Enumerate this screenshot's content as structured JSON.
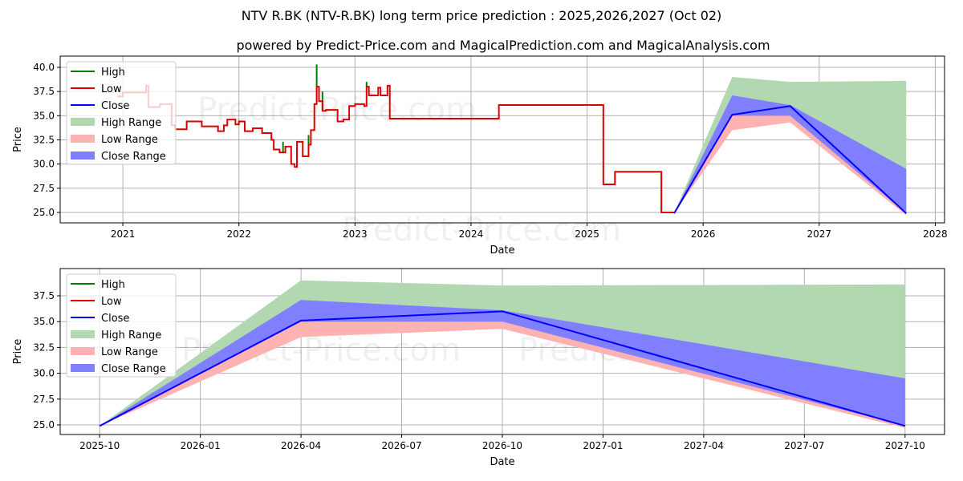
{
  "title": "NTV R.BK (NTV-R.BK) long term price prediction : 2025,2026,2027 (Oct 02)",
  "subtitle": "powered by Predict-Price.com and MagicalPrediction.com and MagicalAnalysis.com",
  "watermark": "Predict-Price.com",
  "colors": {
    "high": "#008000",
    "low": "#dd0000",
    "close": "#0000ff",
    "high_range": "#b2d8b2",
    "low_range": "#ffb2b2",
    "close_range": "#7f7fff"
  },
  "chart_data": [
    {
      "type": "line",
      "xlabel": "Date",
      "ylabel": "Price",
      "xlim": [
        2020.46,
        2028.08
      ],
      "ylim": [
        23.92,
        41.16
      ],
      "xticks": [
        2021,
        2022,
        2023,
        2024,
        2025,
        2026,
        2027,
        2028
      ],
      "xtick_labels": [
        "2021",
        "2022",
        "2023",
        "2024",
        "2025",
        "2026",
        "2027",
        "2028"
      ],
      "yticks": [
        25,
        27.5,
        30,
        32.5,
        35,
        37.5,
        40
      ],
      "ytick_labels": [
        "25.0",
        "27.5",
        "30.0",
        "32.5",
        "35.0",
        "37.5",
        "40.0"
      ],
      "grid": true,
      "legend": {
        "placement": "top-left",
        "entries": [
          "High",
          "Low",
          "Close",
          "High Range",
          "Low Range",
          "Close Range"
        ]
      },
      "low_history": [
        [
          2020.95,
          37.0
        ],
        [
          2021.0,
          37.4
        ],
        [
          2021.2,
          38.1
        ],
        [
          2021.22,
          35.9
        ],
        [
          2021.32,
          36.2
        ],
        [
          2021.42,
          34.0
        ],
        [
          2021.45,
          33.6
        ],
        [
          2021.55,
          34.4
        ],
        [
          2021.68,
          33.9
        ],
        [
          2021.82,
          33.4
        ],
        [
          2021.87,
          34.0
        ],
        [
          2021.9,
          34.6
        ],
        [
          2021.97,
          34.1
        ],
        [
          2022.0,
          34.4
        ],
        [
          2022.05,
          33.4
        ],
        [
          2022.12,
          33.7
        ],
        [
          2022.2,
          33.2
        ],
        [
          2022.28,
          32.5
        ],
        [
          2022.3,
          31.5
        ],
        [
          2022.35,
          31.2
        ],
        [
          2022.4,
          31.8
        ],
        [
          2022.45,
          30.0
        ],
        [
          2022.48,
          29.7
        ],
        [
          2022.5,
          32.3
        ],
        [
          2022.55,
          30.8
        ],
        [
          2022.6,
          32.0
        ],
        [
          2022.62,
          33.5
        ],
        [
          2022.65,
          36.2
        ],
        [
          2022.67,
          38.0
        ],
        [
          2022.69,
          36.5
        ],
        [
          2022.72,
          35.5
        ],
        [
          2022.75,
          35.6
        ],
        [
          2022.85,
          34.4
        ],
        [
          2022.9,
          34.6
        ],
        [
          2022.95,
          36.0
        ],
        [
          2023.0,
          36.2
        ],
        [
          2023.08,
          36.0
        ],
        [
          2023.1,
          38.0
        ],
        [
          2023.12,
          37.1
        ],
        [
          2023.2,
          37.9
        ],
        [
          2023.22,
          37.1
        ],
        [
          2023.28,
          38.1
        ],
        [
          2023.3,
          34.7
        ],
        [
          2024.22,
          34.7
        ],
        [
          2024.24,
          36.1
        ],
        [
          2025.12,
          36.1
        ],
        [
          2025.14,
          27.9
        ],
        [
          2025.22,
          27.9
        ],
        [
          2025.24,
          29.2
        ],
        [
          2025.62,
          29.2
        ],
        [
          2025.64,
          25.0
        ],
        [
          2025.75,
          24.9
        ]
      ],
      "high_spikes": [
        [
          2022.38,
          32.3
        ],
        [
          2022.6,
          33.0
        ],
        [
          2022.67,
          40.3
        ],
        [
          2022.72,
          37.5
        ],
        [
          2023.1,
          38.5
        ]
      ],
      "prediction": {
        "x": [
          2025.75,
          2026.25,
          2026.75,
          2027.75
        ],
        "close": [
          24.9,
          35.1,
          36.0,
          24.9
        ],
        "high_range": [
          [
            24.9,
            24.9
          ],
          [
            35.1,
            39.0
          ],
          [
            36.0,
            38.5
          ],
          [
            24.9,
            38.6
          ]
        ],
        "low_range": [
          [
            24.9,
            24.9
          ],
          [
            33.5,
            35.1
          ],
          [
            34.3,
            36.0
          ],
          [
            24.7,
            24.9
          ]
        ],
        "close_range": [
          [
            24.9,
            24.9
          ],
          [
            35.0,
            37.1
          ],
          [
            35.0,
            36.1
          ],
          [
            24.9,
            29.5
          ]
        ]
      }
    },
    {
      "type": "line",
      "xlabel": "Date",
      "ylabel": "Price",
      "xlim": [
        2025.652,
        2027.848
      ],
      "ylim": [
        24.07,
        40.14
      ],
      "xticks": [
        2025.75,
        2026.0,
        2026.25,
        2026.5,
        2026.75,
        2027.0,
        2027.25,
        2027.5,
        2027.75
      ],
      "xtick_labels": [
        "2025-10",
        "2026-01",
        "2026-04",
        "2026-07",
        "2026-10",
        "2027-01",
        "2027-04",
        "2027-07",
        "2027-10"
      ],
      "yticks": [
        25,
        27.5,
        30,
        32.5,
        35,
        37.5
      ],
      "ytick_labels": [
        "25.0",
        "27.5",
        "30.0",
        "32.5",
        "35.0",
        "37.5"
      ],
      "grid": true,
      "legend": {
        "placement": "top-left",
        "entries": [
          "High",
          "Low",
          "Close",
          "High Range",
          "Low Range",
          "Close Range"
        ]
      },
      "prediction_ref": "same as chart 0 prediction"
    }
  ]
}
